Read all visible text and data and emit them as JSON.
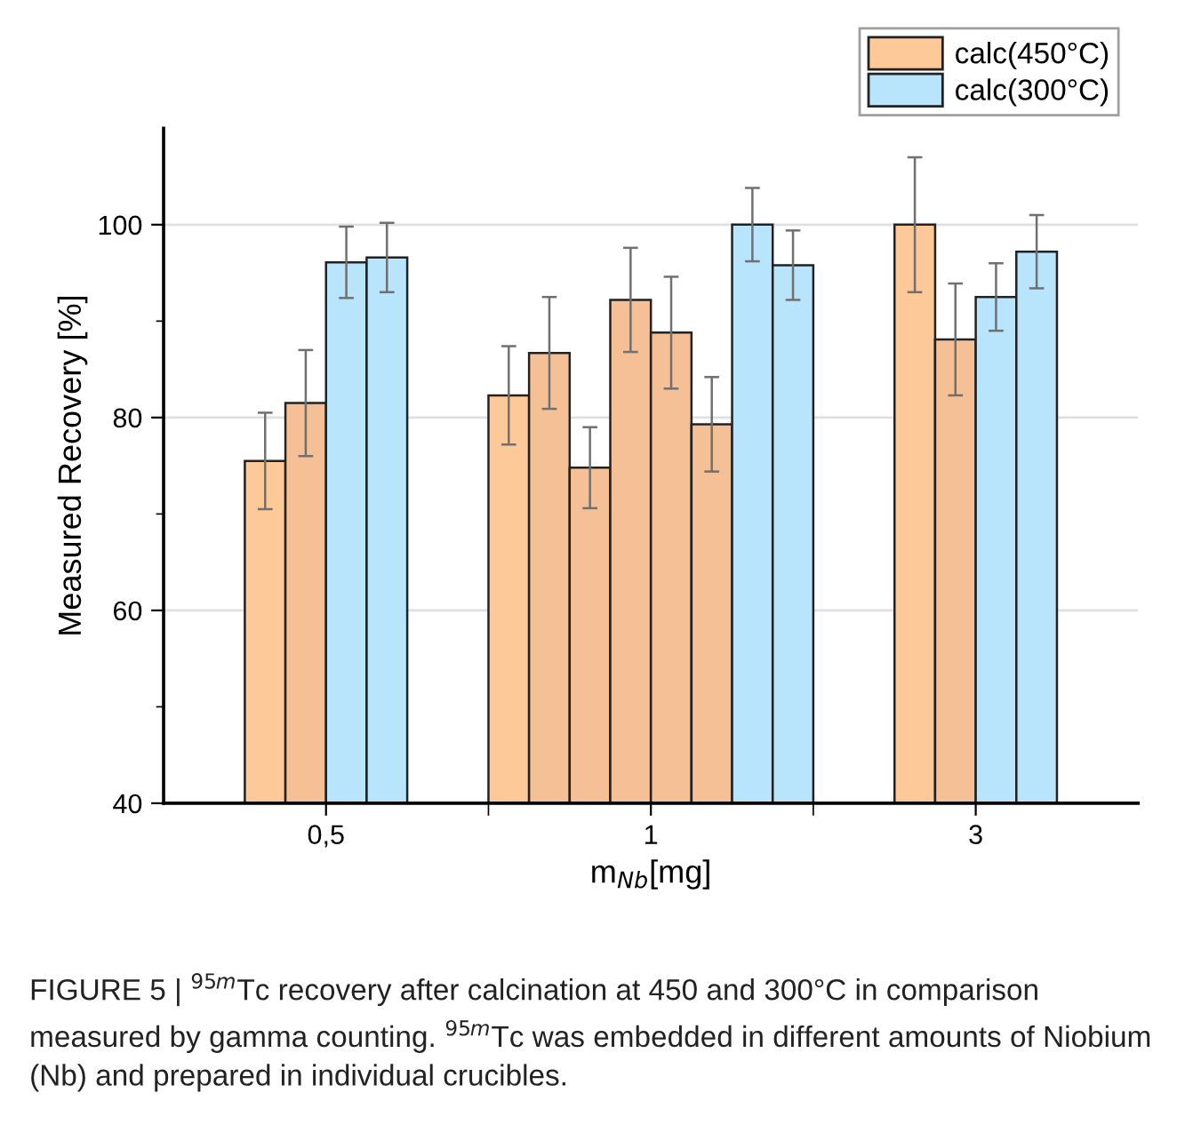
{
  "chart_data": {
    "type": "bar",
    "categories": [
      "0,5",
      "1",
      "3"
    ],
    "series": [
      {
        "name": "calc(450°C)",
        "color": "#fdc999",
        "x": [
          "0,5",
          "0,5",
          "1",
          "1",
          "1",
          "1",
          "1",
          "1",
          "3",
          "3"
        ],
        "values": [
          75.5,
          81.5,
          82.3,
          86.7,
          74.8,
          92.2,
          88.8,
          79.3,
          100.0,
          88.1
        ],
        "errors": [
          5.0,
          5.5,
          5.1,
          5.8,
          4.2,
          5.4,
          5.8,
          4.9,
          7.0,
          5.8
        ],
        "colors": [
          "#fdc999",
          "#f5c096",
          "#fdc999",
          "#f5c096",
          "#f5c096",
          "#f5c096",
          "#f5c096",
          "#f5c096",
          "#fdc999",
          "#f5c096"
        ]
      },
      {
        "name": "calc(300°C)",
        "color": "#b8e4fc",
        "x": [
          "0,5",
          "0,5",
          "1",
          "1",
          "3",
          "3"
        ],
        "values": [
          96.1,
          96.6,
          100.0,
          95.8,
          92.5,
          97.2
        ],
        "errors": [
          3.7,
          3.6,
          3.8,
          3.6,
          3.5,
          3.8
        ],
        "colors": [
          "#b8e4fc",
          "#b8e4fc",
          "#b8e4fc",
          "#b8e4fc",
          "#b8e4fc",
          "#b8e4fc"
        ]
      }
    ],
    "xlabel": "m$_{Nb}$[mg]",
    "ylabel": "Measured Recovery [%]",
    "ylim": [
      40,
      110
    ],
    "yticks": [
      40,
      {
        "value": 50,
        "label": null
      },
      60,
      {
        "value": 70,
        "label": null
      },
      80,
      {
        "value": 90,
        "label": null
      },
      100
    ],
    "grid": "y",
    "legend": "top right",
    "annotations": [
      "FIGURE 5 | $^{95m}$Tc recovery after calcination at 450 and 300°C in comparison measured by gamma counting. $^{95m}$Tc was embedded in different amounts of Niobium (Nb) and prepared in individual crucibles."
    ]
  }
}
